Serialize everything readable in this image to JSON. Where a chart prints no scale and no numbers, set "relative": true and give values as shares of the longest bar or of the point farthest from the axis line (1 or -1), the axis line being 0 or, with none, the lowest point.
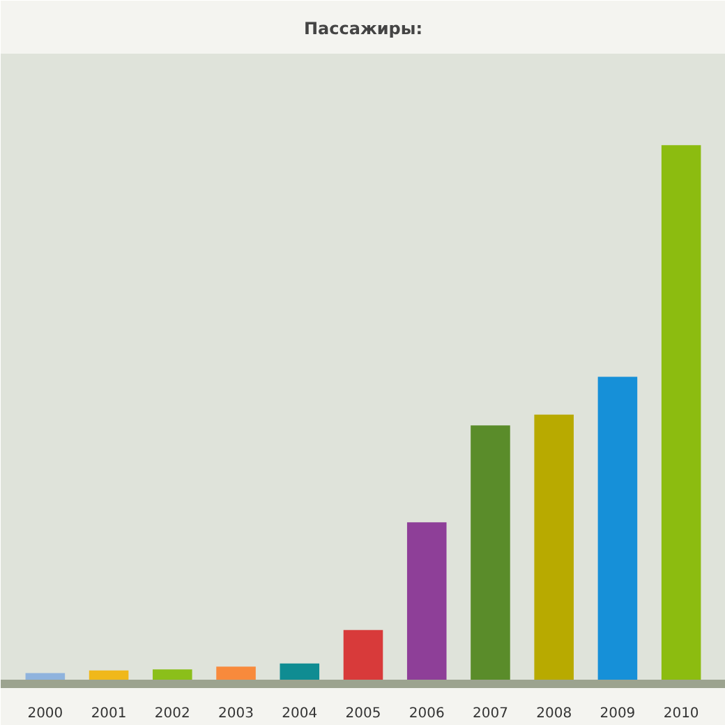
{
  "chart_data": {
    "type": "bar",
    "title": "Пассажиры:",
    "relative": true,
    "categories": [
      "2000",
      "2001",
      "2002",
      "2003",
      "2004",
      "2005",
      "2006",
      "2007",
      "2008",
      "2009",
      "2010"
    ],
    "values": [
      0.02,
      0.025,
      0.027,
      0.032,
      0.038,
      0.1,
      0.3,
      0.48,
      0.5,
      0.57,
      1
    ],
    "colors": [
      "#8fb3dd",
      "#f0b81a",
      "#8bbf1a",
      "#f88a3c",
      "#0f8c92",
      "#d83a3a",
      "#8e3f98",
      "#5a8c2a",
      "#b8aa00",
      "#1690d8",
      "#8cbc10"
    ]
  }
}
